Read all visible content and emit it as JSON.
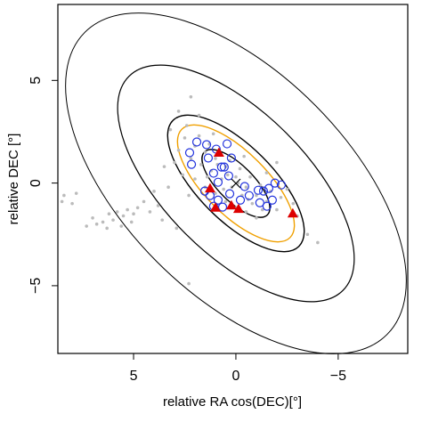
{
  "chart_data": {
    "type": "scatter",
    "xlabel": "relative RA cos(DEC)[°]",
    "ylabel": "relative DEC [°]",
    "xlim": [
      8.7,
      -8.4
    ],
    "ylim": [
      -8.3,
      8.7
    ],
    "xticks": [
      5,
      0,
      {
        "value": -5,
        "label": "−5"
      }
    ],
    "yticks": [
      {
        "value": -5,
        "label": "−5"
      },
      0,
      5
    ],
    "series": [
      {
        "marker": "dot",
        "color": "#bbbbbb",
        "x": [
          2.5,
          2.0,
          1.5,
          1.0,
          0.5,
          0,
          -0.5,
          -1,
          -1.5,
          -2,
          2.2,
          1.7,
          1.2,
          0.7,
          0.2,
          -0.3,
          -0.8,
          1.8,
          1.3,
          0.8,
          0.3,
          -0.2,
          -0.7,
          -1.2,
          -1.7,
          -2.2,
          2.8,
          3.0,
          2.6,
          2.0,
          1.5,
          1.0,
          0.5,
          0,
          -0.5,
          -1,
          3.2,
          2.4,
          1.1,
          -0.4,
          -1.5,
          -2.5,
          -2.8,
          -3,
          3.5,
          3.3,
          2.3,
          4,
          0.9,
          0.4,
          -0.1,
          0.6,
          1.4,
          -1.3,
          -0.6,
          4.5,
          4.8,
          5.0,
          5.3,
          5.5,
          5.8,
          6.0,
          6.2,
          6.5,
          6.8,
          7.0,
          5.1,
          5.6,
          6.3,
          4.2,
          3.8,
          7.3,
          8.0,
          8.4,
          8.5,
          7.8,
          3.6,
          2.9,
          -3.5,
          -4,
          2.2,
          2.8,
          1.8,
          -2.0,
          2.3
        ],
        "values": [
          2.2,
          1.8,
          1.5,
          1.2,
          0.8,
          0.3,
          -0.2,
          -0.6,
          -0.9,
          -1.3,
          1.2,
          0.9,
          0.6,
          0.2,
          -0.2,
          -0.6,
          -1.0,
          2.3,
          1.9,
          1.6,
          1.1,
          0.7,
          0.3,
          -0.1,
          -0.4,
          -0.7,
          1.6,
          1.0,
          0.4,
          0.2,
          -0.2,
          -0.5,
          -0.9,
          -1.2,
          -1.4,
          -1.7,
          2.6,
          2.8,
          2.4,
          1.3,
          0.5,
          -0.3,
          -1.0,
          -1.6,
          0.8,
          -0.2,
          -0.6,
          -0.4,
          0.9,
          0.4,
          0,
          -0.3,
          0.3,
          -1.3,
          -0.8,
          -0.9,
          -1.2,
          -1.5,
          -1.3,
          -1.6,
          -1.4,
          -1.8,
          -1.5,
          -1.9,
          -2.0,
          -1.7,
          -1.9,
          -2.1,
          -2.2,
          -1.4,
          -1.1,
          -2.1,
          -1.0,
          -0.6,
          -0.9,
          -0.5,
          -1.8,
          -2.2,
          -2.5,
          -2.9,
          4.2,
          3.5,
          3.3,
          1.0,
          -4.9
        ]
      },
      {
        "marker": "open-circle",
        "color": "#2233dd",
        "x": [
          2.26,
          1.91,
          1.43,
          2.17,
          1.35,
          0.96,
          0.7,
          1.09,
          0.87,
          0.35,
          0.57,
          1.26,
          0.87,
          0.3,
          -0.43,
          -1.09,
          -1.35,
          -1.61,
          -1.91,
          -2.22,
          -1.78,
          -1.52,
          -1.17,
          -0.65,
          1.52,
          0.65,
          1.09,
          -0.22,
          0.22,
          0.43
        ],
        "values": [
          1.48,
          2.0,
          1.87,
          0.91,
          1.22,
          1.65,
          0.78,
          0.48,
          0.04,
          0.35,
          0.78,
          -0.61,
          -0.83,
          -0.52,
          -0.17,
          -0.35,
          -0.39,
          -0.26,
          0.0,
          -0.09,
          -0.83,
          -1.13,
          -0.96,
          -0.61,
          -0.39,
          -1.17,
          -1.13,
          -0.83,
          1.22,
          1.91
        ]
      },
      {
        "marker": "triangle",
        "color": "#dd0000",
        "x": [
          0.83,
          1.26,
          0.22,
          -0.13,
          -2.78,
          1.0
        ],
        "values": [
          1.48,
          -0.26,
          -1.09,
          -1.26,
          -1.48,
          -1.2
        ]
      }
    ]
  }
}
